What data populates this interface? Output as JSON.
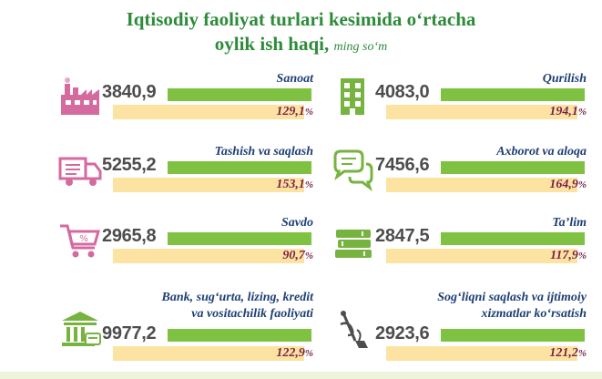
{
  "title": {
    "line1": "Iqtisodiy faoliyat turlari kesimida o‘rtacha",
    "line2": "oylik ish haqi,",
    "unit": "ming so‘m"
  },
  "colors": {
    "title": "#2e8b3a",
    "value_bar": "#7fc241",
    "percent_bar": "#fde3a2",
    "label": "#1f3f75",
    "percent_text": "#7a1f46",
    "icon_pink": "#d46aa0",
    "icon_green": "#77b33f"
  },
  "chart_data": {
    "type": "bar",
    "title": "Iqtisodiy faoliyat turlari kesimida o‘rtacha oylik ish haqi, ming so‘m",
    "series": [
      {
        "name": "",
        "unit": "ming so‘m"
      },
      {
        "name": "",
        "unit": "%"
      }
    ],
    "categories": [
      {
        "label": "Sanoat",
        "value": "3840,9",
        "percent": "129,1",
        "percent_num": 129.1,
        "icon": "factory-icon"
      },
      {
        "label": "Qurilish",
        "value": "4083,0",
        "percent": "194,1",
        "percent_num": 194.1,
        "icon": "building-icon"
      },
      {
        "label": "Tashish va saqlash",
        "value": "5255,2",
        "percent": "153,1",
        "percent_num": 153.1,
        "icon": "truck-icon"
      },
      {
        "label": "Axborot va aloqa",
        "value": "7456,6",
        "percent": "164,9",
        "percent_num": 164.9,
        "icon": "chat-bubbles-icon"
      },
      {
        "label": "Savdo",
        "value": "2965,8",
        "percent": "90,7",
        "percent_num": 90.7,
        "icon": "shopping-cart-icon"
      },
      {
        "label": "Ta’lim",
        "value": "2847,5",
        "percent": "117,9",
        "percent_num": 117.9,
        "icon": "books-icon"
      },
      {
        "label_lines": [
          "Bank, sug‘urta, lizing, kredit",
          "va vositachilik faoliyati"
        ],
        "value": "9977,2",
        "percent": "122,9",
        "percent_num": 122.9,
        "icon": "bank-icon"
      },
      {
        "label_lines": [
          "Sog‘liqni saqlash va ijtimoiy",
          "xizmatlar ko‘rsatish"
        ],
        "value": "2923,6",
        "percent": "121,2",
        "percent_num": 121.2,
        "icon": "medical-caduceus-icon"
      }
    ],
    "percent_sign": "%"
  }
}
